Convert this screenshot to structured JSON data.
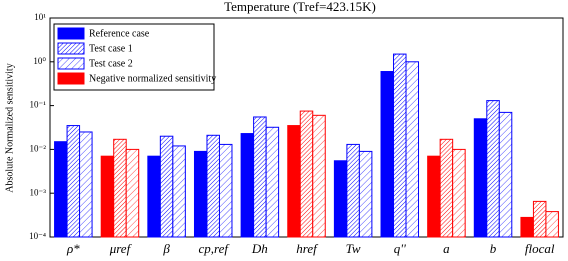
{
  "chart_data": {
    "type": "bar",
    "title": "Temperature (Tref=423.15K)",
    "y_label": "Absolute Normalized sensitivity",
    "categories": [
      "ρ*",
      "μref",
      "β",
      "cp,ref",
      "Dh",
      "href",
      "Tw",
      "q''",
      "a",
      "b",
      "flocal"
    ],
    "series": [
      {
        "name": "Reference case",
        "color": "#0000ff",
        "pattern": "solid",
        "values": [
          0.015,
          0.007,
          0.007,
          0.009,
          0.023,
          0.035,
          0.0055,
          0.6,
          0.007,
          0.05,
          0.00028
        ]
      },
      {
        "name": "Test case 1",
        "color": "#0000ff",
        "pattern": "dense-hatch",
        "values": [
          0.035,
          0.017,
          0.02,
          0.021,
          0.055,
          0.075,
          0.013,
          1.5,
          0.017,
          0.13,
          0.00065
        ]
      },
      {
        "name": "Test case 2",
        "color": "#0000ff",
        "pattern": "light-hatch",
        "values": [
          0.025,
          0.01,
          0.012,
          0.013,
          0.032,
          0.06,
          0.009,
          1.0,
          0.01,
          0.07,
          0.00038
        ]
      }
    ],
    "negative": [
      false,
      true,
      false,
      false,
      false,
      true,
      false,
      false,
      true,
      false,
      true
    ],
    "negative_entry": {
      "name": "Negative normalized sensitivity",
      "color": "#ff0000"
    },
    "log_scale": true,
    "ylim": [
      0.0001,
      10
    ],
    "yticks": [
      {
        "value": 0.0001,
        "label": "10⁻⁴"
      },
      {
        "value": 0.001,
        "label": "10⁻³"
      },
      {
        "value": 0.01,
        "label": "10⁻²"
      },
      {
        "value": 0.1,
        "label": "10⁻¹"
      },
      {
        "value": 1,
        "label": "10⁰"
      },
      {
        "value": 10,
        "label": "10¹"
      }
    ],
    "legend": "upper-left"
  }
}
